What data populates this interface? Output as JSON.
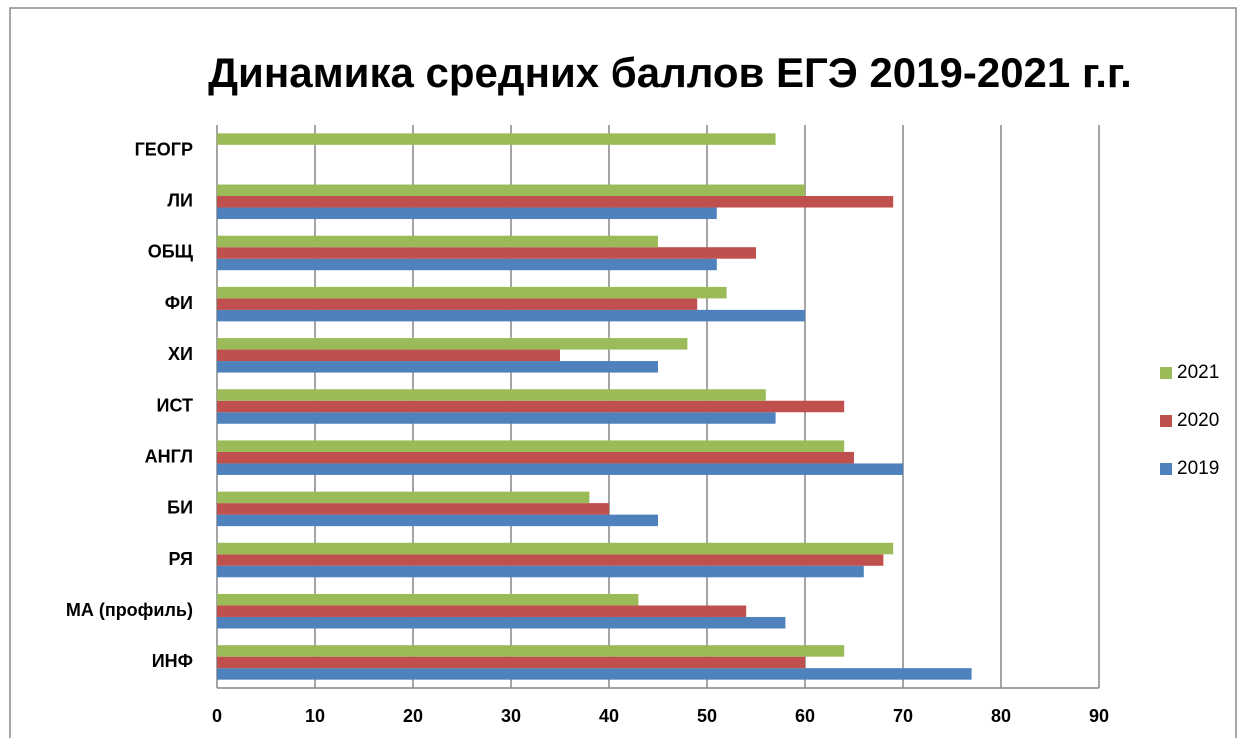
{
  "chart_data": {
    "type": "hbar",
    "title": "Динамика средних баллов ЕГЭ 2019-2021 г.г.",
    "categories": [
      "ИНФ",
      "МА (профиль)",
      "РЯ",
      "БИ",
      "АНГЛ",
      "ИСТ",
      "ХИ",
      "ФИ",
      "ОБЩ",
      "ЛИ",
      "ГЕОГР"
    ],
    "series": [
      {
        "name": "2019",
        "color": "#4f81bd",
        "values": [
          77,
          58,
          66,
          45,
          70,
          57,
          45,
          60,
          51,
          51,
          null
        ]
      },
      {
        "name": "2020",
        "color": "#c0504d",
        "values": [
          60,
          54,
          68,
          40,
          65,
          64,
          35,
          49,
          55,
          69,
          null
        ]
      },
      {
        "name": "2021",
        "color": "#9bbb59",
        "values": [
          64,
          43,
          69,
          38,
          64,
          56,
          48,
          52,
          45,
          60,
          57
        ]
      }
    ],
    "xlim": [
      0,
      90
    ],
    "xticks": [
      0,
      10,
      20,
      30,
      40,
      50,
      60,
      70,
      80,
      90
    ],
    "grid": true,
    "legend": "right"
  }
}
